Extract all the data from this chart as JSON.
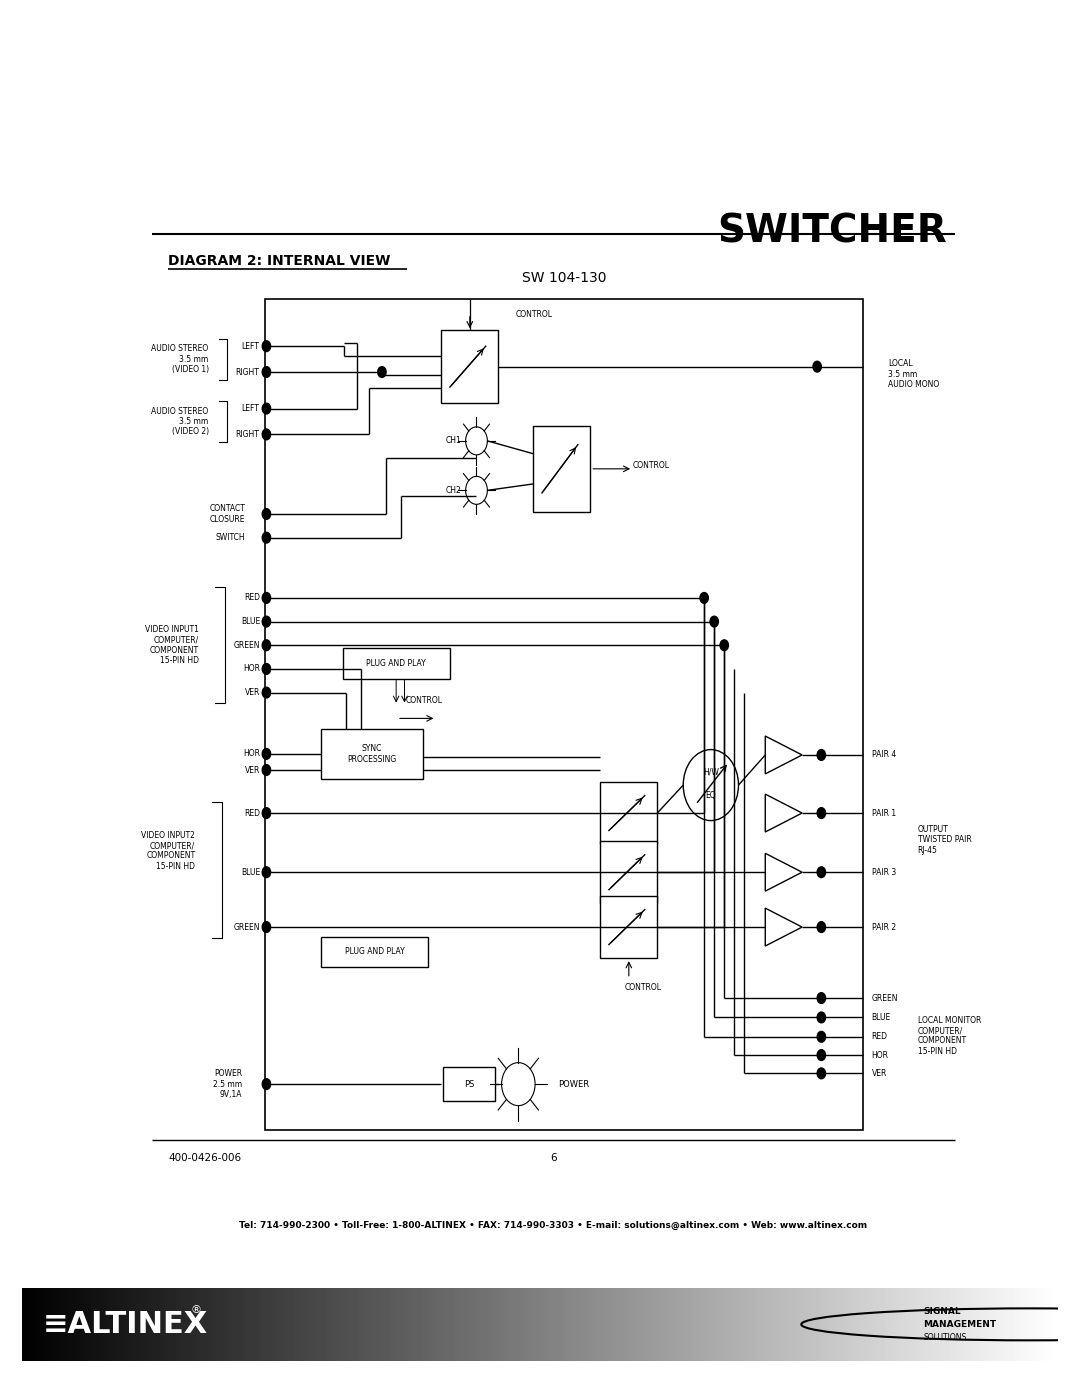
{
  "title": "SWITCHER",
  "diagram_title": "DIAGRAM 2: INTERNAL VIEW",
  "subtitle": "SW 104-130",
  "footer_left": "400-0426-006",
  "footer_center": "6",
  "footer_contact": "Tel: 714-990-2300 • Toll-Free: 1-800-ALTINEX • FAX: 714-990-3303 • E-mail: solutions@altinex.com • Web: www.altinex.com",
  "bg_color": "#ffffff",
  "line_color": "#000000"
}
